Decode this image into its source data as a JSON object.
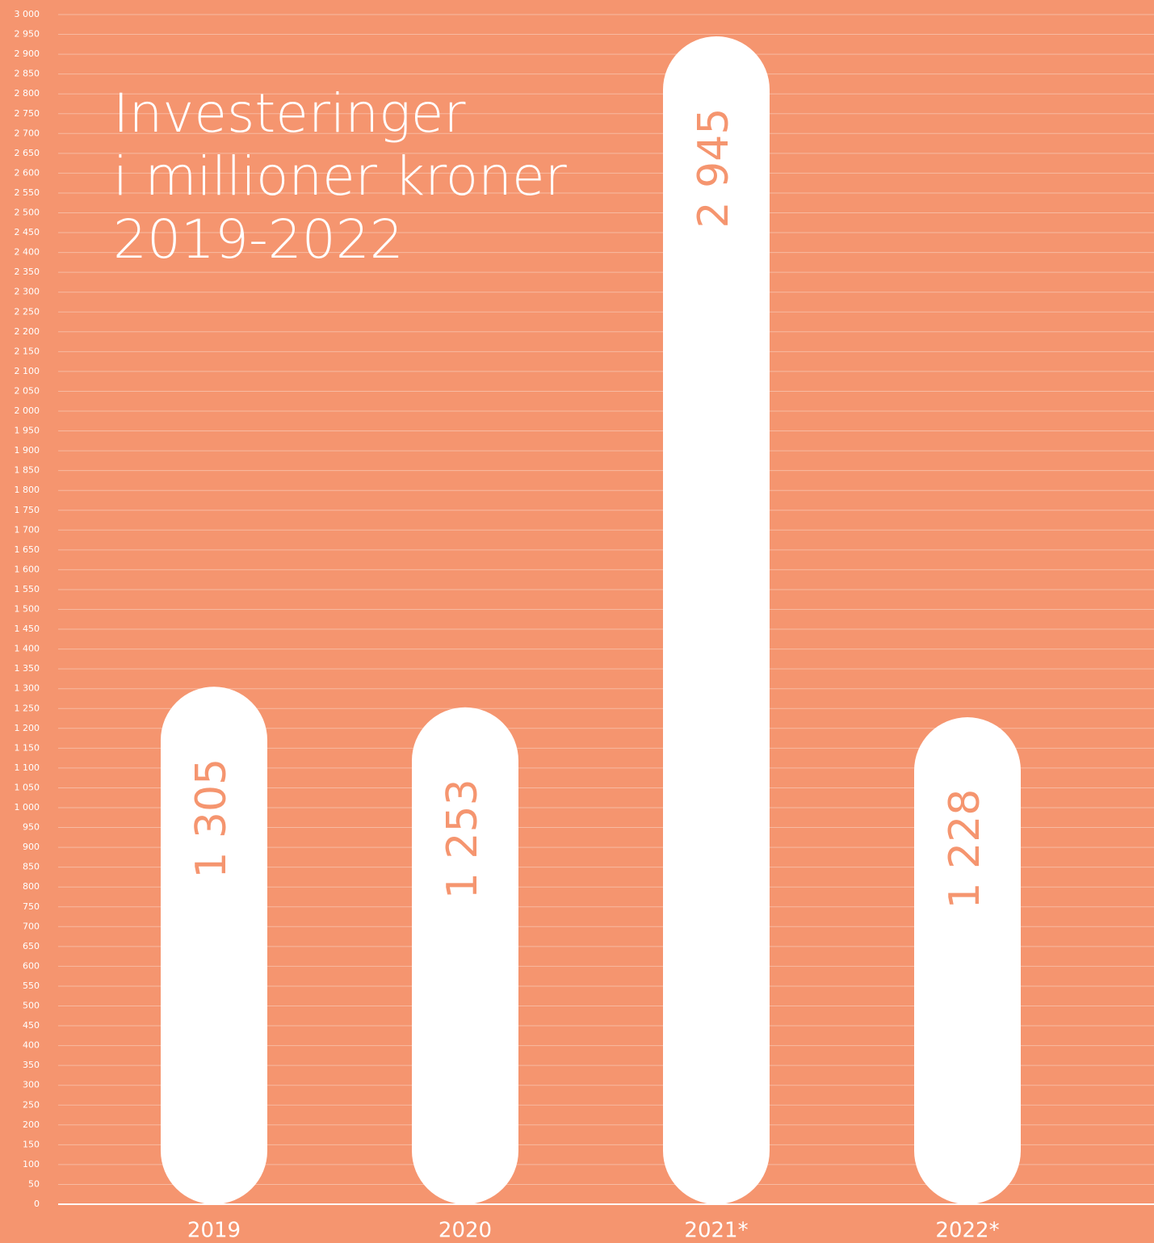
{
  "chart_data": {
    "type": "bar",
    "title": [
      "Investeringer",
      "i millioner kroner",
      "2019-2022"
    ],
    "categories": [
      "2019",
      "2020",
      "2021*",
      "2022*"
    ],
    "values": [
      1305,
      1253,
      2945,
      1228
    ],
    "value_labels": [
      "1 305",
      "1 253",
      "2 945",
      "1 228"
    ],
    "color": "#ffffff",
    "background": "#f5956f",
    "ylim": [
      0,
      3000
    ],
    "yticks": [
      0,
      50,
      100,
      150,
      200,
      250,
      300,
      350,
      400,
      450,
      500,
      550,
      600,
      650,
      700,
      750,
      800,
      850,
      900,
      950,
      {
        "value": 1000,
        "label": "1 000"
      },
      {
        "value": 1050,
        "label": "1 050"
      },
      {
        "value": 1100,
        "label": "1 100"
      },
      {
        "value": 1150,
        "label": "1 150"
      },
      {
        "value": 1200,
        "label": "1 200"
      },
      {
        "value": 1250,
        "label": "1 250"
      },
      {
        "value": 1300,
        "label": "1 300"
      },
      {
        "value": 1350,
        "label": "1 350"
      },
      {
        "value": 1400,
        "label": "1 400"
      },
      {
        "value": 1450,
        "label": "1 450"
      },
      {
        "value": 1500,
        "label": "1 500"
      },
      {
        "value": 1550,
        "label": "1 550"
      },
      {
        "value": 1600,
        "label": "1 600"
      },
      {
        "value": 1650,
        "label": "1 650"
      },
      {
        "value": 1700,
        "label": "1 700"
      },
      {
        "value": 1750,
        "label": "1 750"
      },
      {
        "value": 1800,
        "label": "1 800"
      },
      {
        "value": 1850,
        "label": "1 850"
      },
      {
        "value": 1900,
        "label": "1 900"
      },
      {
        "value": 1950,
        "label": "1 950"
      },
      {
        "value": 2000,
        "label": "2 000"
      },
      {
        "value": 2050,
        "label": "2 050"
      },
      {
        "value": 2100,
        "label": "2 100"
      },
      {
        "value": 2150,
        "label": "2 150"
      },
      {
        "value": 2200,
        "label": "2 200"
      },
      {
        "value": 2250,
        "label": "2 250"
      },
      {
        "value": 2300,
        "label": "2 300"
      },
      {
        "value": 2350,
        "label": "2 350"
      },
      {
        "value": 2400,
        "label": "2 400"
      },
      {
        "value": 2450,
        "label": "2 450"
      },
      {
        "value": 2500,
        "label": "2 500"
      },
      {
        "value": 2550,
        "label": "2 550"
      },
      {
        "value": 2600,
        "label": "2 600"
      },
      {
        "value": 2650,
        "label": "2 650"
      },
      {
        "value": 2700,
        "label": "2 700"
      },
      {
        "value": 2750,
        "label": "2 750"
      },
      {
        "value": 2800,
        "label": "2 800"
      },
      {
        "value": 2850,
        "label": "2 850"
      },
      {
        "value": 2900,
        "label": "2 900"
      },
      {
        "value": 2950,
        "label": "2 950"
      },
      {
        "value": 3000,
        "label": "3 000"
      }
    ],
    "grid": true
  }
}
